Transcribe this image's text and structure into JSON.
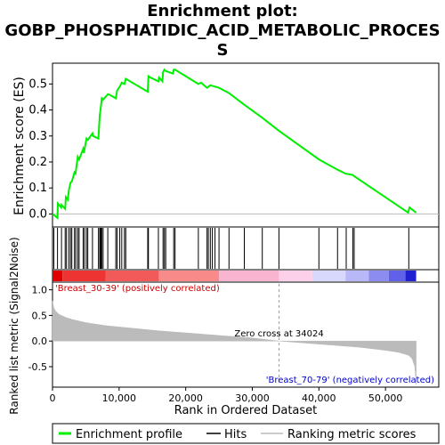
{
  "chart_data": {
    "type": "line",
    "title_lines": [
      "Enrichment plot:",
      "GOBP_PHOSPHATIDIC_ACID_METABOLIC_PROCES",
      "S"
    ],
    "xlabel": "Rank in Ordered Dataset",
    "xlim": [
      0,
      58000
    ],
    "x_ticks": [
      0,
      10000,
      20000,
      30000,
      40000,
      50000
    ],
    "x_tick_labels": [
      "0",
      "10,000",
      "20,000",
      "30,000",
      "40,000",
      "50,000"
    ],
    "es_panel": {
      "ylabel": "Enrichment score (ES)",
      "ylim": [
        -0.05,
        0.58
      ],
      "y_ticks": [
        0.0,
        0.1,
        0.2,
        0.3,
        0.4,
        0.5
      ],
      "y_tick_labels": [
        "0.0",
        "0.1",
        "0.2",
        "0.3",
        "0.4",
        "0.5"
      ],
      "series": {
        "name": "Enrichment profile",
        "color": "#00ee00",
        "x": [
          0,
          750,
          800,
          1300,
          1350,
          1900,
          2000,
          2300,
          2450,
          2700,
          2900,
          3300,
          3450,
          3800,
          4000,
          4600,
          4700,
          5100,
          5300,
          6000,
          6100,
          6900,
          7000,
          7100,
          7200,
          7300,
          7400,
          7600,
          8300,
          8450,
          9500,
          9700,
          10100,
          10400,
          10800,
          11000,
          14300,
          14400,
          14700,
          15900,
          16000,
          16500,
          16600,
          16800,
          17000,
          18100,
          18200,
          18400,
          21900,
          22300,
          23200,
          23700,
          24400,
          25000,
          26500,
          28800,
          31500,
          34000,
          40000,
          42800,
          44000,
          45100,
          45300,
          53400,
          53600,
          54600
        ],
        "y": [
          0.0,
          -0.015,
          0.04,
          0.025,
          0.035,
          0.02,
          0.065,
          0.055,
          0.09,
          0.12,
          0.125,
          0.16,
          0.155,
          0.22,
          0.21,
          0.25,
          0.235,
          0.29,
          0.285,
          0.31,
          0.3,
          0.29,
          0.34,
          0.38,
          0.4,
          0.42,
          0.445,
          0.44,
          0.46,
          0.46,
          0.445,
          0.475,
          0.49,
          0.505,
          0.5,
          0.52,
          0.47,
          0.53,
          0.525,
          0.51,
          0.525,
          0.51,
          0.545,
          0.555,
          0.55,
          0.54,
          0.555,
          0.555,
          0.5,
          0.505,
          0.485,
          0.495,
          0.49,
          0.485,
          0.465,
          0.42,
          0.37,
          0.32,
          0.21,
          0.17,
          0.155,
          0.15,
          0.145,
          0.005,
          0.025,
          0.005
        ]
      },
      "hits_x": [
        200,
        750,
        1350,
        1900,
        2100,
        2450,
        2700,
        2900,
        3300,
        3500,
        3800,
        4000,
        4600,
        4800,
        5100,
        5300,
        6000,
        6900,
        7100,
        7200,
        7300,
        7400,
        7600,
        8300,
        9500,
        9700,
        10100,
        10400,
        10800,
        11000,
        14300,
        14400,
        15900,
        16600,
        16800,
        17000,
        18200,
        18400,
        21900,
        23200,
        23400,
        23700,
        24000,
        24400,
        25000,
        26500,
        28800,
        31500,
        34000,
        40000,
        42800,
        44100,
        45100,
        45300,
        53500
      ]
    },
    "metric_panel": {
      "ylabel": "Ranked list metric (Signal2Noise)",
      "ylim": [
        -0.9,
        1.15
      ],
      "y_ticks": [
        -0.5,
        0.0,
        0.5,
        1.0
      ],
      "y_tick_labels": [
        "-0.5",
        "0.0",
        "0.5",
        "1.0"
      ],
      "series": {
        "name": "Ranking metric scores",
        "color": "#bbbbbb",
        "x": [
          0,
          200,
          500,
          1000,
          2000,
          3000,
          5000,
          8000,
          12000,
          16000,
          20000,
          25000,
          30000,
          34024,
          38000,
          42000,
          46000,
          50000,
          52000,
          53500,
          54000,
          54400,
          54600
        ],
        "y": [
          0.78,
          0.65,
          0.58,
          0.52,
          0.46,
          0.42,
          0.36,
          0.3,
          0.25,
          0.2,
          0.16,
          0.11,
          0.06,
          0.0,
          -0.04,
          -0.08,
          -0.12,
          -0.18,
          -0.22,
          -0.28,
          -0.35,
          -0.5,
          -0.85
        ]
      },
      "zero_cross_x": 34024,
      "zero_cross_label": "Zero cross at 34024",
      "positive_label": "'Breast_30-39' (positively correlated)",
      "negative_label": "'Breast_70-79' (negatively correlated)"
    },
    "colorbar_segments": [
      {
        "from": 0,
        "to": 1500,
        "color": "#e00000"
      },
      {
        "from": 1500,
        "to": 8000,
        "color": "#ee3333"
      },
      {
        "from": 8000,
        "to": 16000,
        "color": "#f25a5a"
      },
      {
        "from": 16000,
        "to": 25000,
        "color": "#f88a8a"
      },
      {
        "from": 25000,
        "to": 34000,
        "color": "#f9b5d0"
      },
      {
        "from": 34000,
        "to": 39000,
        "color": "#fcd0e8"
      },
      {
        "from": 39000,
        "to": 44000,
        "color": "#d8d8fc"
      },
      {
        "from": 44000,
        "to": 47500,
        "color": "#b8b8f8"
      },
      {
        "from": 47500,
        "to": 50500,
        "color": "#8c8cf0"
      },
      {
        "from": 50500,
        "to": 53000,
        "color": "#6060e8"
      },
      {
        "from": 53000,
        "to": 54600,
        "color": "#2020d0"
      }
    ],
    "legend": [
      {
        "label": "Enrichment profile",
        "color": "#00ee00"
      },
      {
        "label": "Hits",
        "color": "#000000"
      },
      {
        "label": "Ranking metric scores",
        "color": "#bbbbbb"
      }
    ]
  }
}
